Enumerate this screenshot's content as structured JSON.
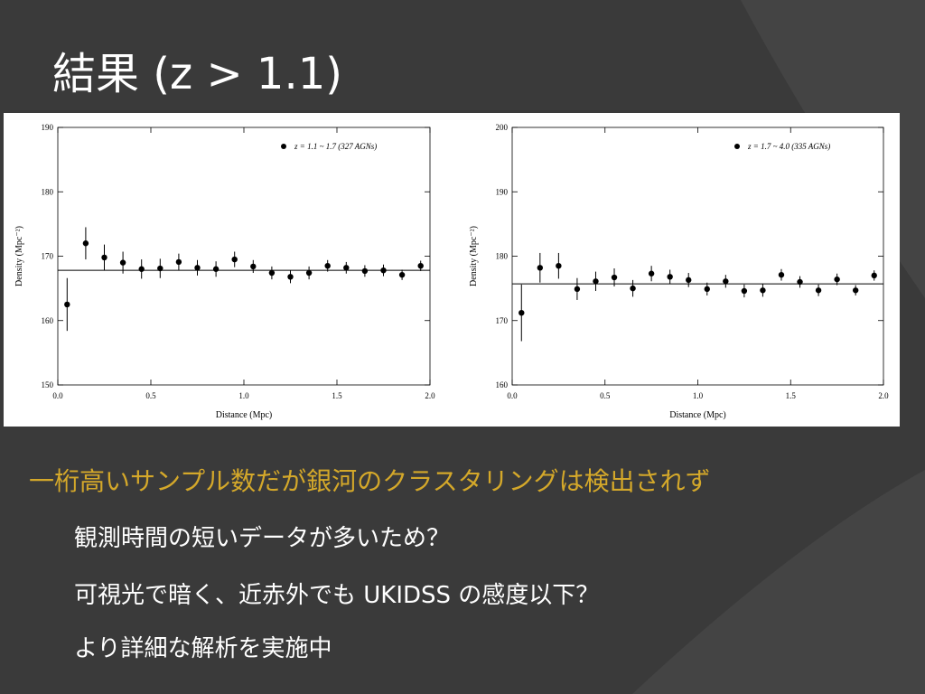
{
  "slide_title": "結果 (z > 1.1)",
  "bullets": [
    "一桁高いサンプル数だが銀河のクラスタリングは検出されず",
    "観測時間の短いデータが多いため？",
    "可視光で暗く、近赤外でも UKIDSS の感度以下？",
    "より詳細な解析を実施中"
  ],
  "chart_data": [
    {
      "type": "scatter",
      "x_label": "Distance (Mpc)",
      "y_label": "Density (Mpc⁻²)",
      "x": [
        0.05,
        0.15,
        0.25,
        0.35,
        0.45,
        0.55,
        0.65,
        0.75,
        0.85,
        0.95,
        1.05,
        1.15,
        1.25,
        1.35,
        1.45,
        1.55,
        1.65,
        1.75,
        1.85,
        1.95
      ],
      "series": [
        {
          "name": "z = 1.1 ~ 1.7 (327 AGNs)",
          "color": "#000000",
          "values": [
            162.5,
            172.0,
            169.8,
            169.0,
            168.0,
            168.1,
            169.1,
            168.2,
            168.0,
            169.5,
            168.4,
            167.4,
            166.8,
            167.4,
            168.5,
            168.2,
            167.7,
            167.8,
            167.1,
            168.5
          ],
          "errors": [
            4.1,
            2.5,
            2.0,
            1.7,
            1.5,
            1.5,
            1.3,
            1.2,
            1.2,
            1.2,
            1.0,
            1.0,
            1.0,
            1.0,
            0.9,
            0.9,
            0.9,
            0.9,
            0.8,
            0.8
          ]
        }
      ],
      "reference_line": 167.8,
      "xlim": [
        0,
        2
      ],
      "xticks": [
        {
          "value": 0,
          "label": "0.0"
        },
        0.5,
        {
          "value": 1,
          "label": "1.0"
        },
        1.5,
        {
          "value": 2,
          "label": "2.0"
        }
      ],
      "ylim": [
        150,
        190
      ],
      "yticks": [
        150,
        160,
        170,
        180,
        190
      ],
      "legend": "upper right"
    },
    {
      "type": "scatter",
      "x_label": "Distance (Mpc)",
      "y_label": "Density (Mpc⁻²)",
      "x": [
        0.05,
        0.15,
        0.25,
        0.35,
        0.45,
        0.55,
        0.65,
        0.75,
        0.85,
        0.95,
        1.05,
        1.15,
        1.25,
        1.35,
        1.45,
        1.55,
        1.65,
        1.75,
        1.85,
        1.95
      ],
      "series": [
        {
          "name": "z = 1.7 ~ 4.0 (335 AGNs)",
          "color": "#000000",
          "values": [
            171.2,
            178.2,
            178.5,
            174.9,
            176.1,
            176.7,
            175.0,
            177.3,
            176.8,
            176.3,
            174.9,
            176.1,
            174.6,
            174.7,
            177.1,
            176.0,
            174.7,
            176.4,
            174.7,
            177.0
          ],
          "errors": [
            4.4,
            2.3,
            2.0,
            1.7,
            1.5,
            1.4,
            1.3,
            1.2,
            1.1,
            1.1,
            1.0,
            1.0,
            1.0,
            1.0,
            0.9,
            0.9,
            0.9,
            0.9,
            0.8,
            0.8
          ]
        }
      ],
      "reference_line": 175.7,
      "xlim": [
        0,
        2
      ],
      "xticks": [
        {
          "value": 0,
          "label": "0.0"
        },
        0.5,
        {
          "value": 1,
          "label": "1.0"
        },
        1.5,
        {
          "value": 2,
          "label": "2.0"
        }
      ],
      "ylim": [
        160,
        200
      ],
      "yticks": [
        160,
        170,
        180,
        190,
        200
      ],
      "legend": "upper right"
    }
  ]
}
